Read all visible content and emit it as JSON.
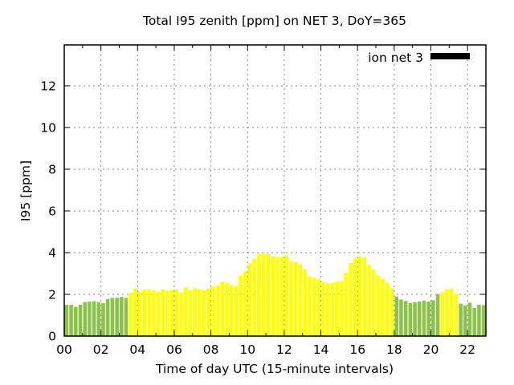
{
  "chart_data": {
    "type": "bar",
    "title": "Total I95 zenith [ppm] on NET 3, DoY=365",
    "xlabel": "Time of day UTC (15-minute intervals)",
    "ylabel": "I95 [ppm]",
    "legend": [
      {
        "label": "ion net 3",
        "swatch_color": "#000000",
        "position": "top-right"
      }
    ],
    "grid": true,
    "grid_color": "#888888",
    "background_color": "#ffffff",
    "border_color": "#000000",
    "x_hours_range": [
      0,
      23
    ],
    "interval_minutes": 15,
    "first_bar_time": "00:00",
    "last_bar_time": "22:45",
    "xticks": [
      "00",
      "02",
      "04",
      "06",
      "08",
      "10",
      "12",
      "14",
      "16",
      "18",
      "20",
      "22"
    ],
    "xtick_hours": [
      0,
      2,
      4,
      6,
      8,
      10,
      12,
      14,
      16,
      18,
      20,
      22
    ],
    "yticks": [
      0,
      2,
      4,
      6,
      8,
      10,
      12
    ],
    "ylim": [
      0,
      13.96
    ],
    "bar_colors": {
      "green": "#8BC34A",
      "yellow": "#FFFF00"
    },
    "series": [
      {
        "name": "ion net 3",
        "values": [
          1.5,
          1.5,
          1.4,
          1.5,
          1.63,
          1.66,
          1.67,
          1.63,
          1.58,
          1.78,
          1.83,
          1.83,
          1.88,
          1.83,
          2.08,
          2.28,
          2.12,
          2.22,
          2.25,
          2.2,
          2.14,
          2.23,
          2.18,
          2.2,
          2.24,
          2.08,
          2.33,
          2.2,
          2.3,
          2.25,
          2.2,
          2.28,
          2.38,
          2.43,
          2.6,
          2.55,
          2.45,
          2.4,
          2.9,
          3.1,
          3.48,
          3.7,
          3.93,
          3.95,
          3.93,
          3.83,
          3.8,
          3.82,
          3.85,
          3.6,
          3.55,
          3.45,
          3.2,
          2.85,
          2.8,
          2.72,
          2.6,
          2.53,
          2.55,
          2.6,
          2.62,
          3.05,
          3.5,
          3.72,
          3.83,
          3.78,
          3.42,
          3.2,
          2.9,
          2.75,
          2.55,
          2.3,
          1.9,
          1.75,
          1.68,
          1.58,
          1.62,
          1.66,
          1.7,
          1.66,
          1.72,
          2.02,
          2.1,
          2.25,
          2.28,
          2.02,
          1.55,
          1.47,
          1.6,
          1.35,
          1.5,
          1.48
        ],
        "color_segments": [
          {
            "from": 0,
            "to": 13,
            "color": "green"
          },
          {
            "from": 14,
            "to": 71,
            "color": "yellow"
          },
          {
            "from": 72,
            "to": 81,
            "color": "green"
          },
          {
            "from": 82,
            "to": 85,
            "color": "yellow"
          },
          {
            "from": 86,
            "to": 91,
            "color": "green"
          }
        ]
      }
    ]
  }
}
